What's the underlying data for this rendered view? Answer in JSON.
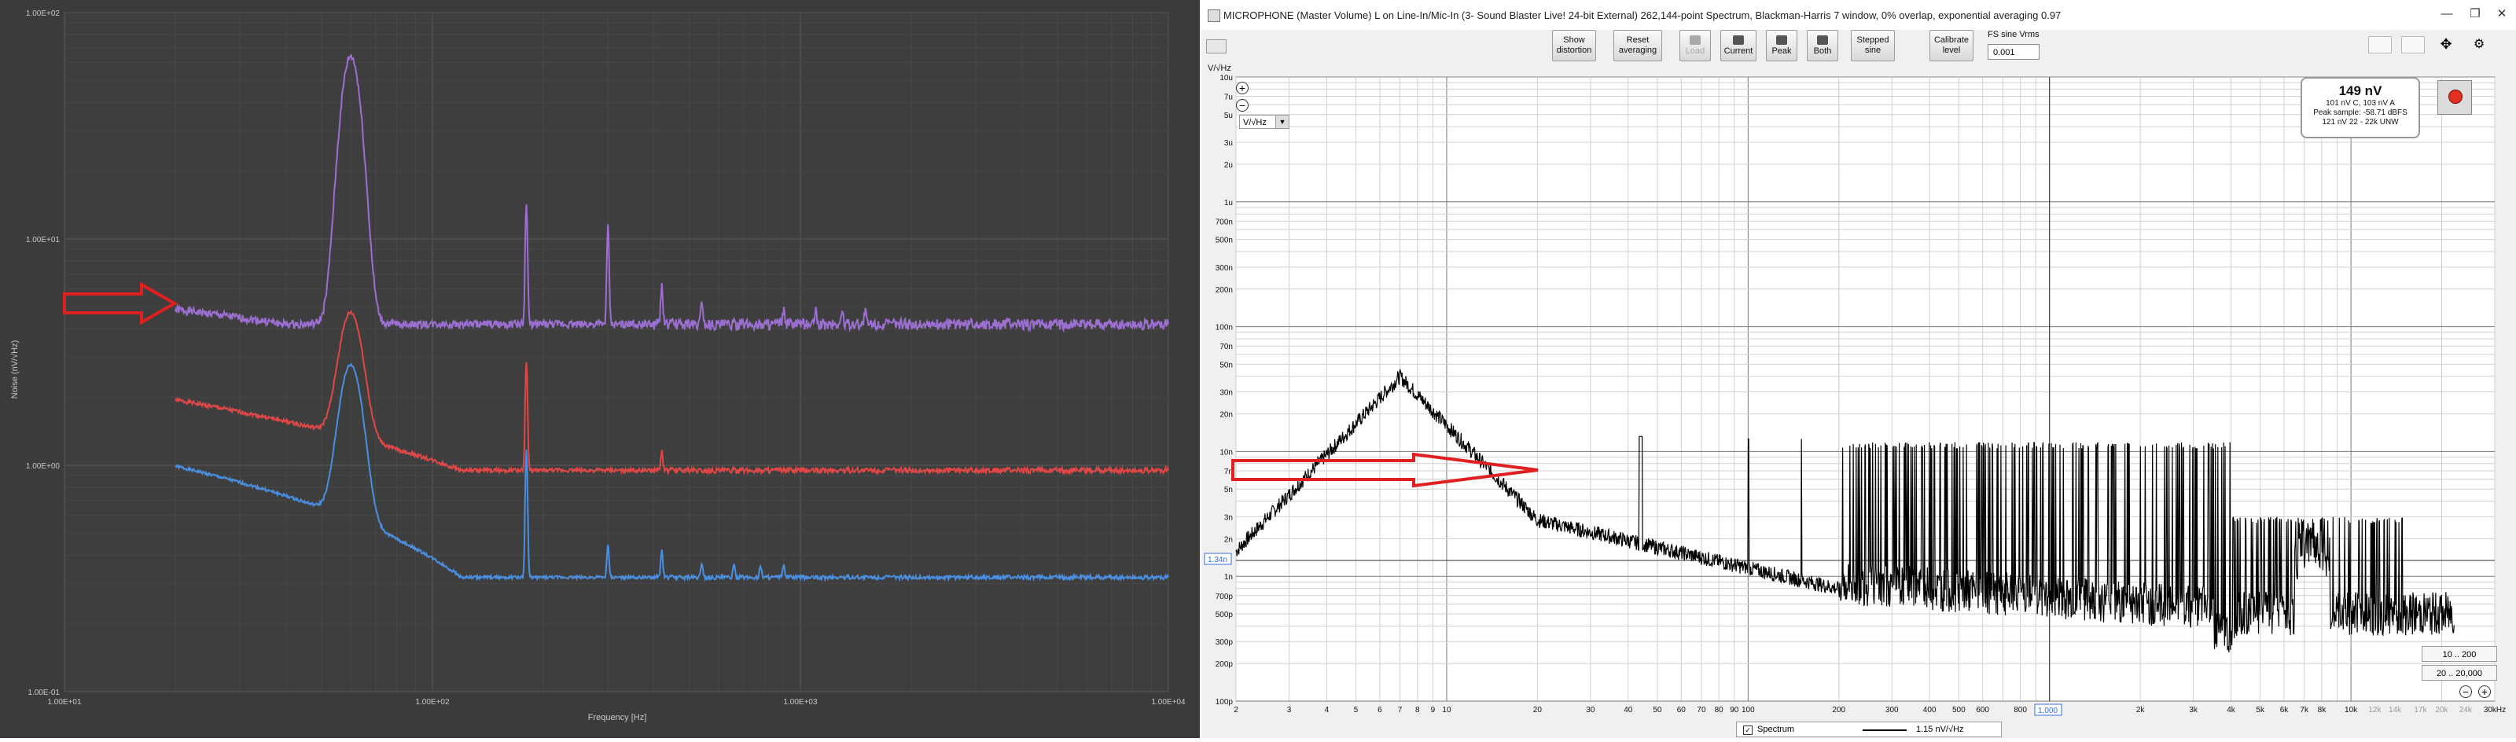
{
  "left_plot": {
    "ylabel": "Noise (nV/√Hz)",
    "xlabel": "Frequency [Hz]",
    "y_ticks": [
      "1.00E+02",
      "1.00E+01",
      "1.00E+00",
      "1.00E-01"
    ],
    "x_ticks": [
      "1.00E+01",
      "1.00E+02",
      "1.00E+03",
      "1.00E+04"
    ],
    "colors": {
      "background": "#3b3b3b",
      "purple": "#9b6fd0",
      "red": "#e04848",
      "blue": "#4a8fe0",
      "arrow": "#e02020"
    }
  },
  "window": {
    "title": "MICROPHONE (Master Volume) L on Line-In/Mic-In (3- Sound Blaster Live! 24-bit External) 262,144-point Spectrum, Blackman-Harris 7 window, 0% overlap, exponential averaging 0.97",
    "minimize": "—",
    "restore": "❐",
    "close": "✕"
  },
  "toolbar": {
    "buttons": [
      {
        "label1": "Show",
        "label2": "distortion"
      },
      {
        "label1": "Reset",
        "label2": "averaging"
      },
      {
        "label1": "",
        "label2": "Load"
      },
      {
        "label1": "",
        "label2": "Current"
      },
      {
        "label1": "",
        "label2": "Peak"
      },
      {
        "label1": "",
        "label2": "Both"
      },
      {
        "label1": "Stepped",
        "label2": "sine"
      },
      {
        "label1": "Calibrate",
        "label2": "level"
      }
    ],
    "fs_label": "FS sine Vrms",
    "fs_value": "0.001"
  },
  "right_plot": {
    "units_label": "V/√Hz",
    "unit_select": "V/√Hz",
    "y_ticks": [
      {
        "l": "10u",
        "v": 1e-05
      },
      {
        "l": "7u",
        "v": 7e-06
      },
      {
        "l": "5u",
        "v": 5e-06
      },
      {
        "l": "3u",
        "v": 3e-06
      },
      {
        "l": "2u",
        "v": 2e-06
      },
      {
        "l": "1u",
        "v": 1e-06
      },
      {
        "l": "700n",
        "v": 7e-07
      },
      {
        "l": "500n",
        "v": 5e-07
      },
      {
        "l": "300n",
        "v": 3e-07
      },
      {
        "l": "200n",
        "v": 2e-07
      },
      {
        "l": "100n",
        "v": 1e-07
      },
      {
        "l": "70n",
        "v": 7e-08
      },
      {
        "l": "50n",
        "v": 5e-08
      },
      {
        "l": "30n",
        "v": 3e-08
      },
      {
        "l": "20n",
        "v": 2e-08
      },
      {
        "l": "10n",
        "v": 1e-08
      },
      {
        "l": "7n",
        "v": 7e-09
      },
      {
        "l": "5n",
        "v": 5e-09
      },
      {
        "l": "3n",
        "v": 3e-09
      },
      {
        "l": "2n",
        "v": 2e-09
      },
      {
        "l": "1n",
        "v": 1e-09
      },
      {
        "l": "700p",
        "v": 7e-10
      },
      {
        "l": "500p",
        "v": 5e-10
      },
      {
        "l": "300p",
        "v": 3e-10
      },
      {
        "l": "200p",
        "v": 2e-10
      },
      {
        "l": "100p",
        "v": 1e-10
      }
    ],
    "x_ticks": [
      {
        "l": "2",
        "v": 2
      },
      {
        "l": "3",
        "v": 3
      },
      {
        "l": "4",
        "v": 4
      },
      {
        "l": "5",
        "v": 5
      },
      {
        "l": "6",
        "v": 6
      },
      {
        "l": "7",
        "v": 7
      },
      {
        "l": "8",
        "v": 8
      },
      {
        "l": "9",
        "v": 9
      },
      {
        "l": "10",
        "v": 10
      },
      {
        "l": "20",
        "v": 20
      },
      {
        "l": "30",
        "v": 30
      },
      {
        "l": "40",
        "v": 40
      },
      {
        "l": "50",
        "v": 50
      },
      {
        "l": "60",
        "v": 60
      },
      {
        "l": "70",
        "v": 70
      },
      {
        "l": "80",
        "v": 80
      },
      {
        "l": "90",
        "v": 90
      },
      {
        "l": "100",
        "v": 100
      },
      {
        "l": "200",
        "v": 200
      },
      {
        "l": "300",
        "v": 300
      },
      {
        "l": "400",
        "v": 400
      },
      {
        "l": "500",
        "v": 500
      },
      {
        "l": "600",
        "v": 600
      },
      {
        "l": "800",
        "v": 800
      },
      {
        "l": "2k",
        "v": 2000
      },
      {
        "l": "3k",
        "v": 3000
      },
      {
        "l": "4k",
        "v": 4000
      },
      {
        "l": "5k",
        "v": 5000
      },
      {
        "l": "6k",
        "v": 6000
      },
      {
        "l": "7k",
        "v": 7000
      },
      {
        "l": "8k",
        "v": 8000
      },
      {
        "l": "10k",
        "v": 10000
      },
      {
        "l": "12k",
        "v": 12000
      },
      {
        "l": "14k",
        "v": 14000
      },
      {
        "l": "17k",
        "v": 17000
      },
      {
        "l": "20k",
        "v": 20000
      },
      {
        "l": "24k",
        "v": 24000
      },
      {
        "l": "30kHz",
        "v": 30000
      }
    ],
    "x_cursor": "1,000",
    "y_cursor": "1.34n",
    "info": {
      "big": "149 nV",
      "line1": "101 nV C, 103 nV A",
      "line2": "Peak sample: -58.71 dBFS",
      "line3": "121 nV 22 - 22k UNW"
    },
    "range_buttons": [
      "10 .. 200",
      "20 .. 20,000"
    ],
    "legend": {
      "name": "Spectrum",
      "value": "1.15 nV/√Hz"
    }
  }
}
